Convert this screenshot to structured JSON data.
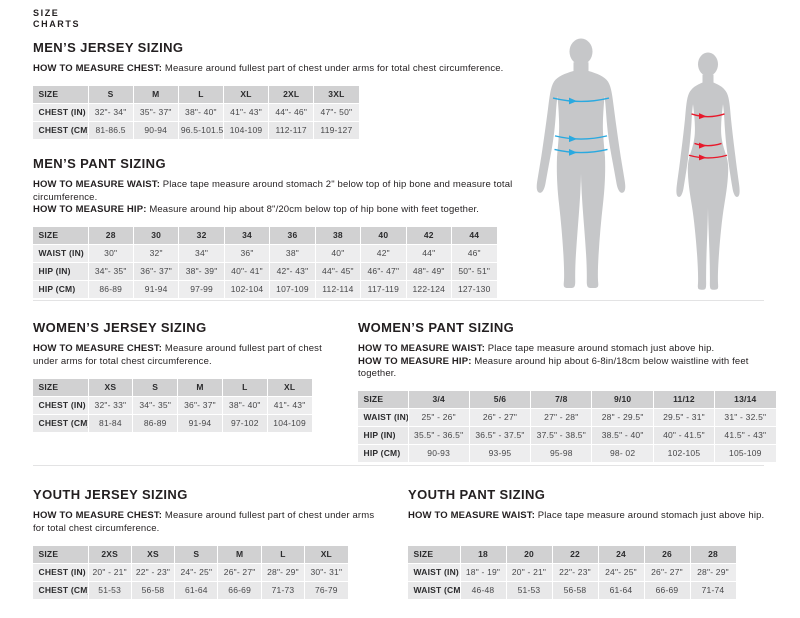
{
  "brand": {
    "line1": "SIZE",
    "line2": "CHARTS"
  },
  "colors": {
    "body_fill": "#c6c7c9",
    "male_measure_line": "#29a9e0",
    "female_measure_line": "#e8192b",
    "table_header_bg": "#d1d1d2",
    "table_row_bg": "#ededee"
  },
  "figures": {
    "male": "male body silhouette with chest, waist and hip measurement lines",
    "female": "female body silhouette with chest, waist and hip measurement lines"
  },
  "sections": {
    "mens_jersey": {
      "title": "MEN’S JERSEY SIZING",
      "instructions": [
        {
          "label": "HOW TO MEASURE CHEST:",
          "text": "Measure around fullest part of chest under arms for total chest circumference."
        }
      ],
      "table": {
        "header": [
          "SIZE",
          "S",
          "M",
          "L",
          "XL",
          "2XL",
          "3XL"
        ],
        "rows": [
          [
            "CHEST (IN)",
            "32\"- 34\"",
            "35\"- 37\"",
            "38\"- 40\"",
            "41\"- 43\"",
            "44\"- 46\"",
            "47\"- 50\""
          ],
          [
            "CHEST (CM)",
            "81-86.5",
            "90-94",
            "96.5-101.5",
            "104-109",
            "112-117",
            "119-127"
          ]
        ]
      }
    },
    "mens_pant": {
      "title": "MEN’S PANT SIZING",
      "instructions": [
        {
          "label": "HOW TO MEASURE WAIST:",
          "text": "Place tape measure around stomach 2\" below top of hip bone and measure total circumference."
        },
        {
          "label": "HOW TO MEASURE HIP:",
          "text": "Measure around hip about 8\"/20cm below top of hip bone with feet together."
        }
      ],
      "table": {
        "header": [
          "SIZE",
          "28",
          "30",
          "32",
          "34",
          "36",
          "38",
          "40",
          "42",
          "44"
        ],
        "rows": [
          [
            "WAIST (IN)",
            "30\"",
            "32\"",
            "34\"",
            "36\"",
            "38\"",
            "40\"",
            "42\"",
            "44\"",
            "46\""
          ],
          [
            "HIP (IN)",
            "34\"- 35\"",
            "36\"- 37\"",
            "38\"- 39\"",
            "40\"- 41\"",
            "42\"- 43\"",
            "44\"- 45\"",
            "46\"- 47\"",
            "48\"- 49\"",
            "50\"- 51\""
          ],
          [
            "HIP (CM)",
            "86-89",
            "91-94",
            "97-99",
            "102-104",
            "107-109",
            "112-114",
            "117-119",
            "122-124",
            "127-130"
          ]
        ]
      }
    },
    "womens_jersey": {
      "title": "WOMEN’S JERSEY SIZING",
      "instructions": [
        {
          "label": "HOW TO MEASURE CHEST:",
          "text": "Measure around fullest part of chest under arms for total chest circumference."
        }
      ],
      "table": {
        "header": [
          "SIZE",
          "XS",
          "S",
          "M",
          "L",
          "XL"
        ],
        "rows": [
          [
            "CHEST (IN)",
            "32\"- 33\"",
            "34\"- 35\"",
            "36\"- 37\"",
            "38\"- 40\"",
            "41\"- 43\""
          ],
          [
            "CHEST (CM)",
            "81-84",
            "86-89",
            "91-94",
            "97-102",
            "104-109"
          ]
        ]
      }
    },
    "womens_pant": {
      "title": "WOMEN’S PANT SIZING",
      "instructions": [
        {
          "label": "HOW TO MEASURE WAIST:",
          "text": "Place tape measure around stomach just above hip."
        },
        {
          "label": "HOW TO MEASURE HIP:",
          "text": "Measure around hip about 6-8in/18cm below waistline with feet together."
        }
      ],
      "table": {
        "header": [
          "SIZE",
          "3/4",
          "5/6",
          "7/8",
          "9/10",
          "11/12",
          "13/14"
        ],
        "rows": [
          [
            "WAIST (IN)",
            "25\" - 26\"",
            "26\" - 27\"",
            "27\" - 28\"",
            "28\" - 29.5\"",
            "29.5\" - 31\"",
            "31\" - 32.5\""
          ],
          [
            "HIP (IN)",
            "35.5\" - 36.5\"",
            "36.5\" - 37.5\"",
            "37.5\" - 38.5\"",
            "38.5\" - 40\"",
            "40\" - 41.5\"",
            "41.5\" - 43\""
          ],
          [
            "HIP (CM)",
            "90-93",
            "93-95",
            "95-98",
            "98- 02",
            "102-105",
            "105-109"
          ]
        ]
      }
    },
    "youth_jersey": {
      "title": "YOUTH JERSEY SIZING",
      "instructions": [
        {
          "label": "HOW TO MEASURE CHEST:",
          "text": "Measure around fullest part of chest under arms for total chest circumference."
        }
      ],
      "table": {
        "header": [
          "SIZE",
          "2XS",
          "XS",
          "S",
          "M",
          "L",
          "XL"
        ],
        "rows": [
          [
            "CHEST (IN)",
            "20\" - 21\"",
            "22\" - 23\"",
            "24\"- 25\"",
            "26\"- 27\"",
            "28\"- 29\"",
            "30\"- 31\""
          ],
          [
            "CHEST (CM)",
            "51-53",
            "56-58",
            "61-64",
            "66-69",
            "71-73",
            "76-79"
          ]
        ]
      }
    },
    "youth_pant": {
      "title": "YOUTH PANT SIZING",
      "instructions": [
        {
          "label": "HOW TO MEASURE WAIST:",
          "text": "Place tape measure around stomach just above hip."
        }
      ],
      "table": {
        "header": [
          "SIZE",
          "18",
          "20",
          "22",
          "24",
          "26",
          "28"
        ],
        "rows": [
          [
            "WAIST (IN)",
            "18\" - 19\"",
            "20\" - 21\"",
            "22\"- 23\"",
            "24\"- 25\"",
            "26\"- 27\"",
            "28\"- 29\""
          ],
          [
            "WAIST (CM)",
            "46-48",
            "51-53",
            "56-58",
            "61-64",
            "66-69",
            "71-74"
          ]
        ]
      }
    }
  }
}
